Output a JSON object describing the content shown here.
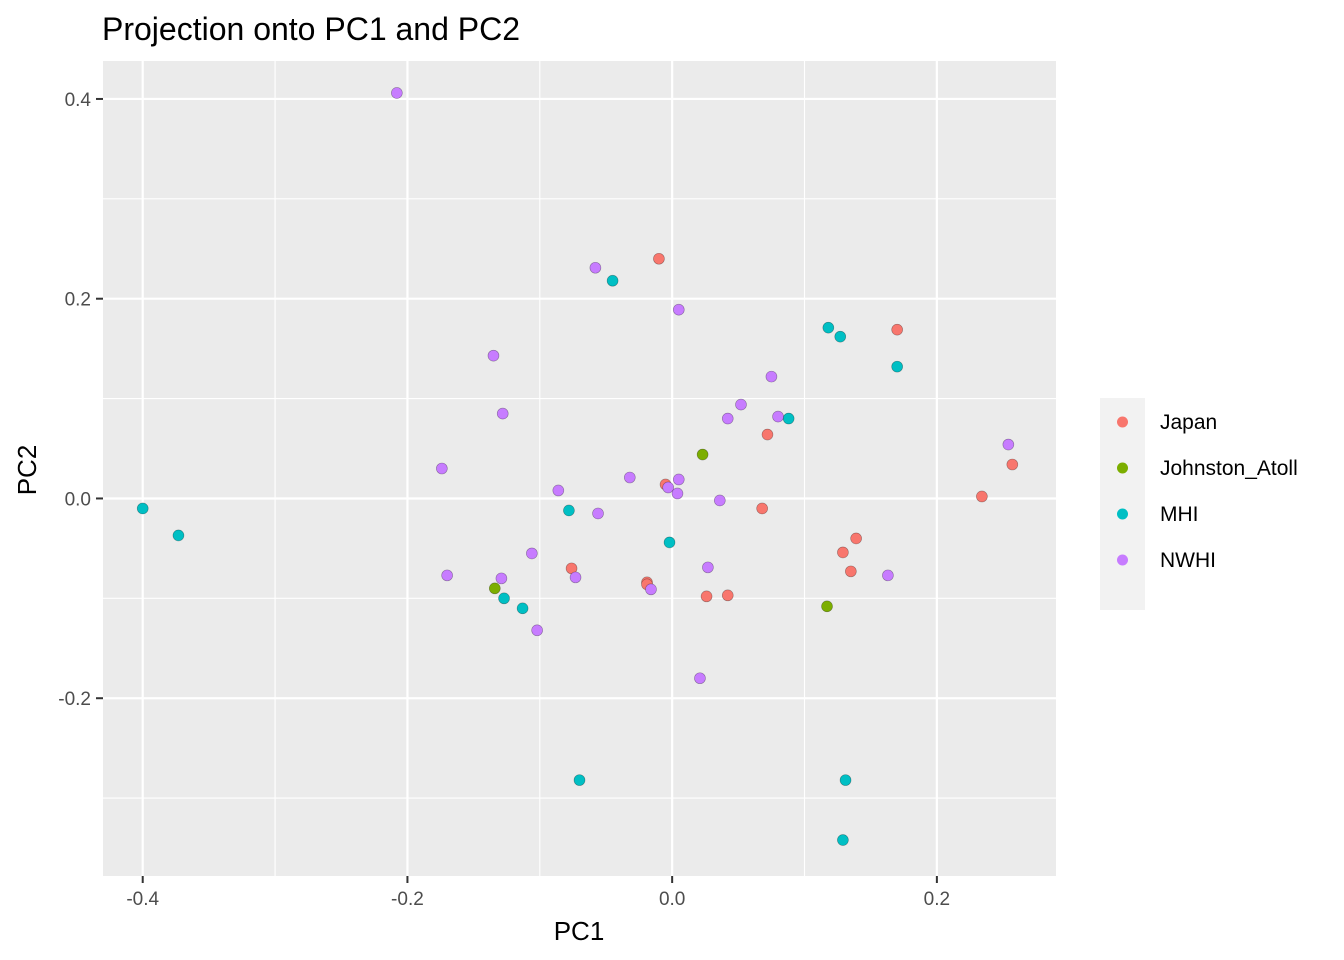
{
  "chart_data": {
    "type": "scatter",
    "title": "Projection onto PC1 and PC2",
    "xlabel": "PC1",
    "ylabel": "PC2",
    "xlim": [
      -0.43,
      0.29
    ],
    "ylim": [
      -0.378,
      0.438
    ],
    "x_ticks": [
      -0.4,
      -0.2,
      0.0,
      0.2
    ],
    "x_tick_labels": [
      "-0.4",
      "-0.2",
      "0.0",
      "0.2"
    ],
    "y_ticks": [
      -0.2,
      0.0,
      0.2,
      0.4
    ],
    "y_tick_labels": [
      "-0.2",
      "0.0",
      "0.2",
      "0.4"
    ],
    "grid": true,
    "legend_position": "right",
    "series": [
      {
        "name": "Japan",
        "color": "#F8766D",
        "points": [
          [
            -0.01,
            0.24
          ],
          [
            0.17,
            0.169
          ],
          [
            0.072,
            0.064
          ],
          [
            -0.005,
            0.014
          ],
          [
            0.068,
            -0.01
          ],
          [
            0.234,
            0.002
          ],
          [
            0.257,
            0.034
          ],
          [
            0.139,
            -0.04
          ],
          [
            0.129,
            -0.054
          ],
          [
            0.135,
            -0.073
          ],
          [
            -0.076,
            -0.07
          ],
          [
            -0.019,
            -0.084
          ],
          [
            -0.019,
            -0.086
          ],
          [
            0.026,
            -0.098
          ],
          [
            0.042,
            -0.097
          ]
        ]
      },
      {
        "name": "Johnston_Atoll",
        "color": "#7CAE00",
        "points": [
          [
            0.023,
            0.044
          ],
          [
            -0.134,
            -0.09
          ],
          [
            0.117,
            -0.108
          ]
        ]
      },
      {
        "name": "MHI",
        "color": "#00BFC4",
        "points": [
          [
            -0.045,
            0.218
          ],
          [
            0.118,
            0.171
          ],
          [
            0.127,
            0.162
          ],
          [
            0.17,
            0.132
          ],
          [
            0.088,
            0.08
          ],
          [
            -0.4,
            -0.01
          ],
          [
            -0.373,
            -0.037
          ],
          [
            -0.078,
            -0.012
          ],
          [
            -0.002,
            -0.044
          ],
          [
            -0.127,
            -0.1
          ],
          [
            -0.113,
            -0.11
          ],
          [
            -0.07,
            -0.282
          ],
          [
            0.131,
            -0.282
          ],
          [
            0.129,
            -0.342
          ]
        ]
      },
      {
        "name": "NWHI",
        "color": "#C77CFF",
        "points": [
          [
            -0.208,
            0.406
          ],
          [
            -0.058,
            0.231
          ],
          [
            0.005,
            0.189
          ],
          [
            -0.135,
            0.143
          ],
          [
            0.075,
            0.122
          ],
          [
            -0.128,
            0.085
          ],
          [
            0.052,
            0.094
          ],
          [
            0.042,
            0.08
          ],
          [
            0.08,
            0.082
          ],
          [
            0.254,
            0.054
          ],
          [
            -0.174,
            0.03
          ],
          [
            -0.032,
            0.021
          ],
          [
            0.005,
            0.019
          ],
          [
            -0.086,
            0.008
          ],
          [
            -0.003,
            0.011
          ],
          [
            0.004,
            0.005
          ],
          [
            0.036,
            -0.002
          ],
          [
            -0.056,
            -0.015
          ],
          [
            -0.106,
            -0.055
          ],
          [
            0.027,
            -0.069
          ],
          [
            -0.17,
            -0.077
          ],
          [
            -0.073,
            -0.079
          ],
          [
            -0.129,
            -0.08
          ],
          [
            0.163,
            -0.077
          ],
          [
            -0.016,
            -0.091
          ],
          [
            -0.102,
            -0.132
          ],
          [
            0.021,
            -0.18
          ]
        ]
      }
    ]
  }
}
